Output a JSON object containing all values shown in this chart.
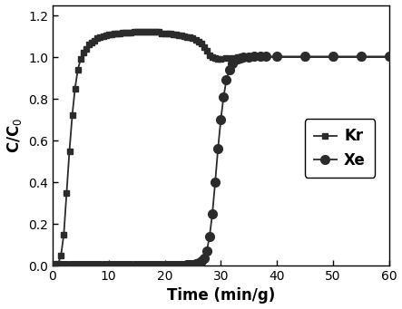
{
  "xlabel": "Time (min/g)",
  "ylabel": "C/C$_0$",
  "xlim": [
    0,
    60
  ],
  "ylim": [
    0.0,
    1.25
  ],
  "yticks": [
    0.0,
    0.2,
    0.4,
    0.6,
    0.8,
    1.0,
    1.2
  ],
  "xticks": [
    0,
    10,
    20,
    30,
    40,
    50,
    60
  ],
  "line_color": "#2b2b2b",
  "legend_labels": [
    "Kr",
    "Xe"
  ],
  "kr_x": [
    0.0,
    0.5,
    1.0,
    1.5,
    2.0,
    2.5,
    3.0,
    3.5,
    4.0,
    4.5,
    5.0,
    5.5,
    6.0,
    6.5,
    7.0,
    7.5,
    8.0,
    8.5,
    9.0,
    9.5,
    10.0,
    10.5,
    11.0,
    11.5,
    12.0,
    12.5,
    13.0,
    13.5,
    14.0,
    14.5,
    15.0,
    15.5,
    16.0,
    16.5,
    17.0,
    17.5,
    18.0,
    18.5,
    19.0,
    19.5,
    20.0,
    20.5,
    21.0,
    21.5,
    22.0,
    22.5,
    23.0,
    23.5,
    24.0,
    24.5,
    25.0,
    25.5,
    26.0,
    26.5,
    27.0,
    27.5,
    28.0,
    28.5,
    29.0,
    29.5,
    30.0,
    31.0,
    32.0,
    33.0,
    34.0,
    35.0,
    37.0,
    40.0,
    45.0,
    50.0,
    55.0,
    60.0
  ],
  "kr_y": [
    0.0,
    0.005,
    0.01,
    0.05,
    0.15,
    0.35,
    0.55,
    0.72,
    0.85,
    0.94,
    0.99,
    1.02,
    1.04,
    1.06,
    1.07,
    1.08,
    1.09,
    1.095,
    1.1,
    1.105,
    1.108,
    1.11,
    1.112,
    1.113,
    1.115,
    1.116,
    1.117,
    1.118,
    1.119,
    1.12,
    1.12,
    1.12,
    1.12,
    1.12,
    1.12,
    1.12,
    1.12,
    1.12,
    1.12,
    1.115,
    1.115,
    1.113,
    1.112,
    1.11,
    1.108,
    1.106,
    1.104,
    1.1,
    1.098,
    1.094,
    1.09,
    1.083,
    1.075,
    1.065,
    1.05,
    1.03,
    1.01,
    1.0,
    0.995,
    0.993,
    0.993,
    0.995,
    0.998,
    1.0,
    1.0,
    1.0,
    1.0,
    1.0,
    1.0,
    1.0,
    1.0,
    1.0
  ],
  "xe_x": [
    0.0,
    0.5,
    1.0,
    1.5,
    2.0,
    2.5,
    3.0,
    3.5,
    4.0,
    4.5,
    5.0,
    5.5,
    6.0,
    6.5,
    7.0,
    7.5,
    8.0,
    8.5,
    9.0,
    9.5,
    10.0,
    10.5,
    11.0,
    11.5,
    12.0,
    12.5,
    13.0,
    13.5,
    14.0,
    14.5,
    15.0,
    15.5,
    16.0,
    16.5,
    17.0,
    17.5,
    18.0,
    18.5,
    19.0,
    19.5,
    20.0,
    20.5,
    21.0,
    21.5,
    22.0,
    22.5,
    23.0,
    23.5,
    24.0,
    24.5,
    25.0,
    25.5,
    26.0,
    26.5,
    27.0,
    27.5,
    28.0,
    28.5,
    29.0,
    29.5,
    30.0,
    30.5,
    31.0,
    31.5,
    32.0,
    32.5,
    33.0,
    33.5,
    34.0,
    35.0,
    36.0,
    37.0,
    38.0,
    40.0,
    45.0,
    50.0,
    55.0,
    60.0
  ],
  "xe_y": [
    0.0,
    0.0,
    0.0,
    0.0,
    0.0,
    0.0,
    0.0,
    0.0,
    0.002,
    0.002,
    0.002,
    0.002,
    0.002,
    0.002,
    0.002,
    0.002,
    0.002,
    0.002,
    0.002,
    0.002,
    0.002,
    0.002,
    0.002,
    0.002,
    0.002,
    0.002,
    0.002,
    0.002,
    0.002,
    0.002,
    0.002,
    0.002,
    0.002,
    0.002,
    0.002,
    0.002,
    0.002,
    0.002,
    0.002,
    0.002,
    0.002,
    0.002,
    0.002,
    0.002,
    0.002,
    0.002,
    0.002,
    0.002,
    0.003,
    0.004,
    0.005,
    0.008,
    0.012,
    0.02,
    0.035,
    0.07,
    0.14,
    0.25,
    0.4,
    0.56,
    0.7,
    0.81,
    0.89,
    0.94,
    0.97,
    0.985,
    0.993,
    0.997,
    1.0,
    1.002,
    1.003,
    1.003,
    1.003,
    1.003,
    1.003,
    1.003,
    1.003,
    1.003
  ],
  "marker_size_kr": 5,
  "marker_size_xe": 7,
  "linewidth": 1.3,
  "font_size_label": 12,
  "font_size_tick": 10,
  "font_size_legend": 12
}
